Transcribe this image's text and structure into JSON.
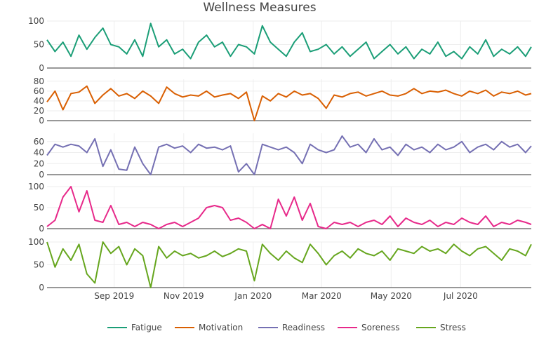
{
  "chart_data": {
    "type": "line",
    "title": "Wellness Measures",
    "layout": "5 stacked subplots sharing a date x-axis",
    "grid": true,
    "legend_placement": "bottom",
    "x_ticks": [
      {
        "date": "2019-09-01",
        "label": "Sep 2019"
      },
      {
        "date": "2019-11-01",
        "label": "Nov 2019"
      },
      {
        "date": "2020-01-01",
        "label": "Jan 2020"
      },
      {
        "date": "2020-03-01",
        "label": "Mar 2020"
      },
      {
        "date": "2020-05-01",
        "label": "May 2020"
      },
      {
        "date": "2020-07-01",
        "label": "Jul 2020"
      }
    ],
    "xlim": [
      "2019-07-04",
      "2020-09-01"
    ],
    "x": [
      "2019-07-04",
      "2019-07-11",
      "2019-07-18",
      "2019-07-25",
      "2019-08-01",
      "2019-08-08",
      "2019-08-15",
      "2019-08-22",
      "2019-08-29",
      "2019-09-05",
      "2019-09-12",
      "2019-09-19",
      "2019-09-26",
      "2019-10-03",
      "2019-10-10",
      "2019-10-17",
      "2019-10-24",
      "2019-10-31",
      "2019-11-07",
      "2019-11-14",
      "2019-11-21",
      "2019-11-28",
      "2019-12-05",
      "2019-12-12",
      "2019-12-19",
      "2019-12-26",
      "2020-01-02",
      "2020-01-09",
      "2020-01-16",
      "2020-01-23",
      "2020-01-30",
      "2020-02-06",
      "2020-02-13",
      "2020-02-20",
      "2020-02-27",
      "2020-03-05",
      "2020-03-12",
      "2020-03-19",
      "2020-03-26",
      "2020-04-02",
      "2020-04-09",
      "2020-04-16",
      "2020-04-23",
      "2020-04-30",
      "2020-05-07",
      "2020-05-14",
      "2020-05-21",
      "2020-05-28",
      "2020-06-04",
      "2020-06-11",
      "2020-06-18",
      "2020-06-25",
      "2020-07-02",
      "2020-07-09",
      "2020-07-16",
      "2020-07-23",
      "2020-07-30",
      "2020-08-06",
      "2020-08-13",
      "2020-08-20",
      "2020-08-27",
      "2020-09-01"
    ],
    "series": [
      {
        "name": "Fatigue",
        "color": "#1b9e77",
        "ylim": [
          0,
          100
        ],
        "y_ticks": [
          0,
          50,
          100
        ],
        "values": [
          60,
          35,
          55,
          25,
          70,
          40,
          65,
          85,
          50,
          45,
          30,
          60,
          25,
          95,
          45,
          60,
          30,
          40,
          20,
          55,
          70,
          45,
          55,
          25,
          50,
          45,
          30,
          90,
          55,
          40,
          25,
          55,
          75,
          35,
          40,
          50,
          30,
          45,
          25,
          40,
          55,
          20,
          35,
          50,
          30,
          45,
          20,
          40,
          30,
          55,
          25,
          35,
          20,
          45,
          30,
          60,
          25,
          40,
          30,
          45,
          25,
          45
        ]
      },
      {
        "name": "Motivation",
        "color": "#d95f02",
        "ylim": [
          0,
          84
        ],
        "y_ticks": [
          0,
          20,
          40,
          60,
          80
        ],
        "values": [
          38,
          60,
          22,
          55,
          58,
          70,
          35,
          52,
          65,
          50,
          55,
          45,
          60,
          50,
          35,
          68,
          55,
          48,
          52,
          50,
          60,
          48,
          52,
          55,
          45,
          58,
          0,
          50,
          40,
          55,
          48,
          60,
          52,
          55,
          45,
          25,
          52,
          48,
          55,
          58,
          50,
          55,
          60,
          52,
          50,
          55,
          65,
          55,
          60,
          58,
          62,
          55,
          50,
          60,
          55,
          62,
          50,
          58,
          55,
          60,
          52,
          55
        ]
      },
      {
        "name": "Readiness",
        "color": "#7570b3",
        "ylim": [
          0,
          75
        ],
        "y_ticks": [
          0,
          20,
          40,
          60
        ],
        "values": [
          35,
          55,
          50,
          55,
          52,
          40,
          65,
          15,
          45,
          10,
          8,
          50,
          20,
          0,
          50,
          55,
          48,
          52,
          40,
          55,
          48,
          50,
          45,
          52,
          5,
          20,
          0,
          55,
          50,
          45,
          50,
          40,
          20,
          55,
          45,
          40,
          45,
          70,
          50,
          55,
          40,
          65,
          45,
          50,
          35,
          55,
          45,
          50,
          40,
          55,
          45,
          50,
          60,
          40,
          50,
          55,
          45,
          60,
          50,
          55,
          40,
          52
        ]
      },
      {
        "name": "Soreness",
        "color": "#e7298a",
        "ylim": [
          0,
          100
        ],
        "y_ticks": [
          0,
          50,
          100
        ],
        "values": [
          5,
          20,
          75,
          100,
          40,
          90,
          20,
          15,
          55,
          10,
          15,
          5,
          15,
          10,
          0,
          10,
          15,
          5,
          15,
          25,
          50,
          55,
          50,
          20,
          25,
          15,
          0,
          10,
          0,
          70,
          30,
          75,
          20,
          60,
          5,
          0,
          15,
          10,
          15,
          5,
          15,
          20,
          10,
          30,
          5,
          25,
          15,
          10,
          20,
          5,
          15,
          10,
          25,
          15,
          10,
          30,
          5,
          15,
          10,
          20,
          15,
          10
        ]
      },
      {
        "name": "Stress",
        "color": "#66a61e",
        "ylim": [
          0,
          100
        ],
        "y_ticks": [
          0,
          50,
          100
        ],
        "values": [
          100,
          45,
          85,
          60,
          95,
          30,
          10,
          100,
          75,
          90,
          50,
          85,
          70,
          0,
          90,
          65,
          80,
          70,
          75,
          65,
          70,
          80,
          68,
          75,
          85,
          80,
          15,
          95,
          75,
          60,
          80,
          65,
          55,
          95,
          75,
          50,
          70,
          80,
          65,
          85,
          75,
          70,
          80,
          60,
          85,
          80,
          75,
          90,
          80,
          85,
          75,
          95,
          80,
          70,
          85,
          90,
          75,
          60,
          85,
          80,
          70,
          95
        ]
      }
    ]
  }
}
